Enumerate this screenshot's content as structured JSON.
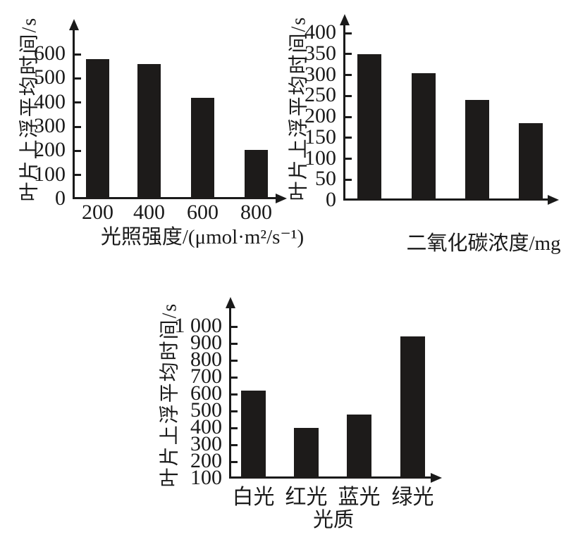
{
  "figure": {
    "description_labels": {
      "shared_y_axis_title": "叶片上浮平均时间/s"
    }
  },
  "colors": {
    "background": "#ffffff",
    "bar": "#1d1b1a",
    "axis": "#1a1a1a",
    "text": "#1a1a1a"
  },
  "chart_data": [
    {
      "type": "bar",
      "title": "",
      "ylabel": "叶片上浮平均时间/s",
      "xlabel": "光照强度/(μmol·m²/s⁻¹)",
      "categories": [
        "200",
        "400",
        "600",
        "800"
      ],
      "values": [
        580,
        560,
        420,
        205
      ],
      "yticks": [
        0,
        100,
        200,
        300,
        400,
        500,
        600
      ],
      "ytick_labels": [
        "0",
        "100",
        "200",
        "300",
        "400",
        "500",
        "600"
      ],
      "ylim": [
        0,
        660
      ],
      "grid": false,
      "legend": null
    },
    {
      "type": "bar",
      "title": "",
      "ylabel": "叶片上浮平均时间/s",
      "xlabel": "二氧化碳浓度/mg",
      "categories": [
        "",
        "",
        "",
        ""
      ],
      "values": [
        350,
        305,
        240,
        185
      ],
      "yticks": [
        0,
        50,
        100,
        150,
        200,
        250,
        300,
        350,
        400
      ],
      "ytick_labels": [
        "0",
        "50",
        "100",
        "150",
        "200",
        "250",
        "300",
        "350",
        "400"
      ],
      "ylim": [
        0,
        400
      ],
      "grid": false,
      "legend": null
    },
    {
      "type": "bar",
      "title": "",
      "ylabel": "叶片上浮平均时间/s",
      "xlabel": "光质",
      "categories": [
        "白光",
        "红光",
        "蓝光",
        "绿光"
      ],
      "values": [
        620,
        400,
        480,
        940
      ],
      "yticks": [
        100,
        200,
        300,
        400,
        500,
        600,
        700,
        800,
        900,
        1000
      ],
      "ytick_labels": [
        "100",
        "200",
        "300",
        "400",
        "500",
        "600",
        "700",
        "800",
        "900",
        "1 000"
      ],
      "ylim": [
        100,
        1060
      ],
      "grid": false,
      "legend": null
    }
  ]
}
